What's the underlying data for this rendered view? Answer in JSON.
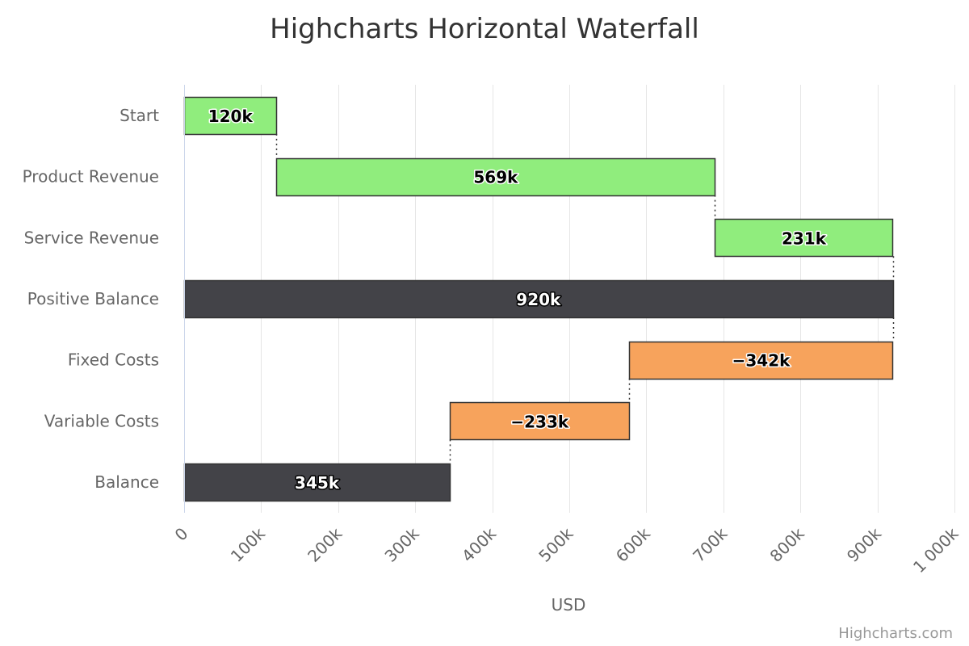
{
  "chart_data": {
    "type": "waterfall",
    "orientation": "horizontal",
    "title": "Highcharts Horizontal Waterfall",
    "xlabel": "USD",
    "ylabel": "",
    "xlim": [
      0,
      1000000
    ],
    "tick_values": [
      0,
      100000,
      200000,
      300000,
      400000,
      500000,
      600000,
      700000,
      800000,
      900000,
      1000000
    ],
    "tick_labels": [
      "0",
      "100k",
      "200k",
      "300k",
      "400k",
      "500k",
      "600k",
      "700k",
      "800k",
      "900k",
      "1 000k"
    ],
    "grid": true,
    "categories": [
      "Start",
      "Product Revenue",
      "Service Revenue",
      "Positive Balance",
      "Fixed Costs",
      "Variable Costs",
      "Balance"
    ],
    "points": [
      {
        "name": "Start",
        "value": 120000,
        "kind": "increase",
        "label": "120k"
      },
      {
        "name": "Product Revenue",
        "value": 569000,
        "kind": "increase",
        "label": "569k"
      },
      {
        "name": "Service Revenue",
        "value": 231000,
        "kind": "increase",
        "label": "231k"
      },
      {
        "name": "Positive Balance",
        "value": 920000,
        "kind": "intermediate-sum",
        "label": "920k"
      },
      {
        "name": "Fixed Costs",
        "value": -342000,
        "kind": "decrease",
        "label": "−342k"
      },
      {
        "name": "Variable Costs",
        "value": -233000,
        "kind": "decrease",
        "label": "−233k"
      },
      {
        "name": "Balance",
        "value": 345000,
        "kind": "sum",
        "label": "345k"
      }
    ],
    "colors": {
      "increase": "#90ed7d",
      "decrease": "#f7a35c",
      "sum": "#434348",
      "bar_border": "#333333",
      "grid": "#e6e6e6",
      "axis_line": "#ccd6eb",
      "connector": "#333333"
    }
  },
  "credits": "Highcharts.com"
}
